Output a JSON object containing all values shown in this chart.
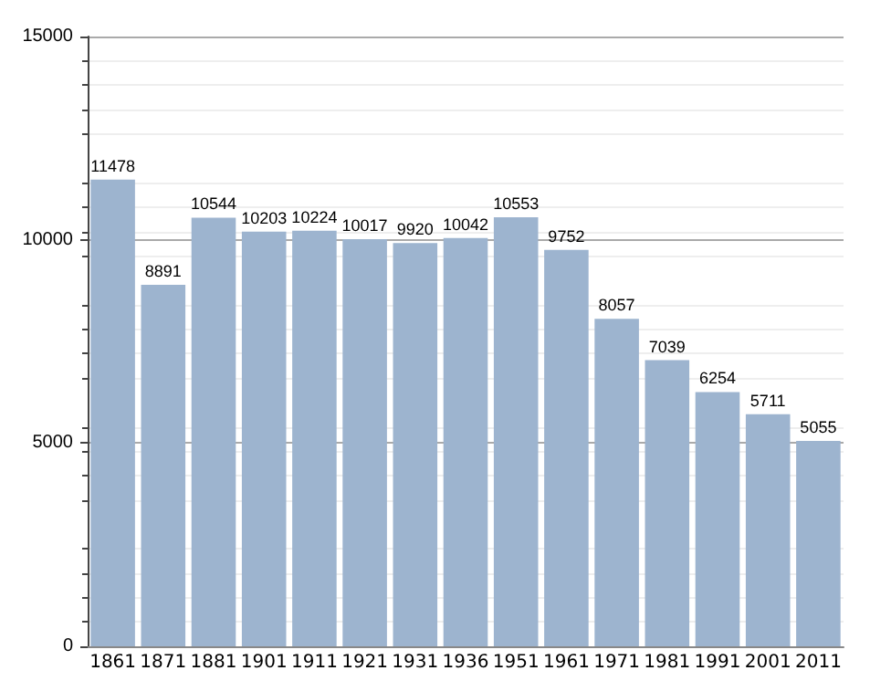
{
  "chart_data": {
    "type": "bar",
    "categories": [
      "1861",
      "1871",
      "1881",
      "1901",
      "1911",
      "1921",
      "1931",
      "1936",
      "1951",
      "1961",
      "1971",
      "1981",
      "1991",
      "2001",
      "2011"
    ],
    "values": [
      11478,
      8891,
      10544,
      10203,
      10224,
      10017,
      9920,
      10042,
      10553,
      9752,
      8057,
      7039,
      6254,
      5711,
      5055
    ],
    "color": "#9db4cf",
    "ylim": [
      0,
      15000
    ],
    "yticks": [
      0,
      5000,
      10000,
      15000
    ],
    "grid": "y",
    "data_labels": true
  }
}
